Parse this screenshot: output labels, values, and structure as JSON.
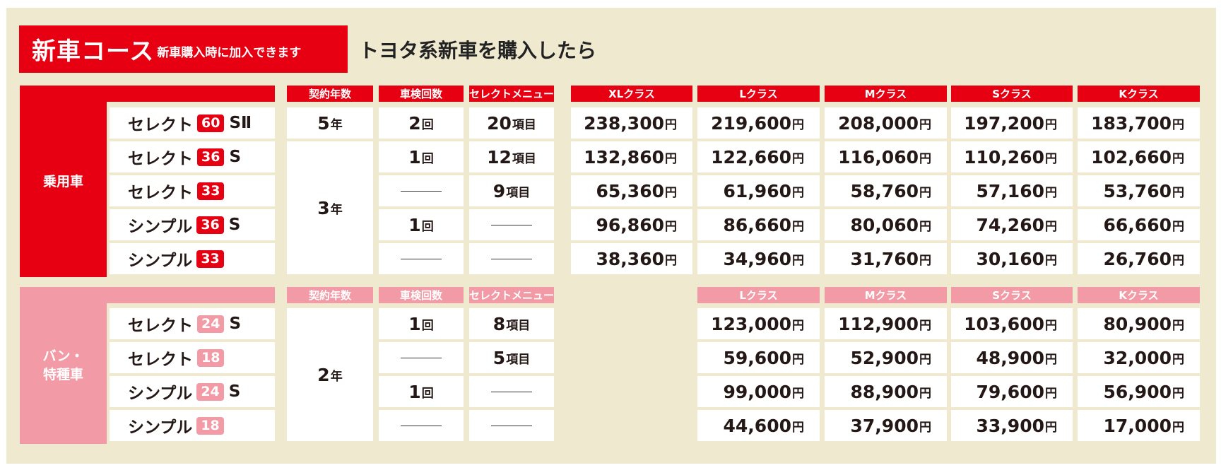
{
  "header": {
    "title": "新車コース",
    "title_note": "新車購入時に加入できます",
    "subtitle": "トヨタ系新車を購入したら"
  },
  "colors": {
    "accent_red": "#e60012",
    "accent_pink": "#f29aa5",
    "panel_bg": "#efe9cf"
  },
  "sections": [
    {
      "category": "乗用車",
      "column_headers": [
        "契約年数",
        "車検回数",
        "セレクトメニュー"
      ],
      "price_headers": [
        "XLクラス",
        "Lクラス",
        "Mクラス",
        "Sクラス",
        "Kクラス"
      ],
      "rows": [
        {
          "plan": "セレクト",
          "badge": "60",
          "suffix": "SⅡ",
          "inspections": "2",
          "inspections_unit": "回",
          "menu": "20",
          "menu_unit": "項目",
          "prices": [
            "238,300",
            "219,600",
            "208,000",
            "197,200",
            "183,700"
          ]
        },
        {
          "plan": "セレクト",
          "badge": "36",
          "suffix": "S",
          "inspections": "1",
          "inspections_unit": "回",
          "menu": "12",
          "menu_unit": "項目",
          "prices": [
            "132,860",
            "122,660",
            "116,060",
            "110,260",
            "102,660"
          ]
        },
        {
          "plan": "セレクト",
          "badge": "33",
          "suffix": "",
          "inspections": "",
          "inspections_unit": "",
          "menu": "9",
          "menu_unit": "項目",
          "prices": [
            "65,360",
            "61,960",
            "58,760",
            "57,160",
            "53,760"
          ]
        },
        {
          "plan": "シンプル",
          "badge": "36",
          "suffix": "S",
          "inspections": "1",
          "inspections_unit": "回",
          "menu": "",
          "menu_unit": "",
          "prices": [
            "96,860",
            "86,660",
            "80,060",
            "74,260",
            "66,660"
          ]
        },
        {
          "plan": "シンプル",
          "badge": "33",
          "suffix": "",
          "inspections": "",
          "inspections_unit": "",
          "menu": "",
          "menu_unit": "",
          "prices": [
            "38,360",
            "34,960",
            "31,760",
            "30,160",
            "26,760"
          ]
        }
      ],
      "years": [
        {
          "value": "5",
          "unit": "年"
        },
        {
          "value": "3",
          "unit": "年"
        }
      ]
    },
    {
      "category_line1": "バン・",
      "category_line2": "特種車",
      "column_headers": [
        "契約年数",
        "車検回数",
        "セレクトメニュー"
      ],
      "price_headers": [
        "Lクラス",
        "Mクラス",
        "Sクラス",
        "Kクラス"
      ],
      "rows": [
        {
          "plan": "セレクト",
          "badge": "24",
          "suffix": "S",
          "inspections": "1",
          "inspections_unit": "回",
          "menu": "8",
          "menu_unit": "項目",
          "prices": [
            "123,000",
            "112,900",
            "103,600",
            "80,900"
          ]
        },
        {
          "plan": "セレクト",
          "badge": "18",
          "suffix": "",
          "inspections": "",
          "inspections_unit": "",
          "menu": "5",
          "menu_unit": "項目",
          "prices": [
            "59,600",
            "52,900",
            "48,900",
            "32,000"
          ]
        },
        {
          "plan": "シンプル",
          "badge": "24",
          "suffix": "S",
          "inspections": "1",
          "inspections_unit": "回",
          "menu": "",
          "menu_unit": "",
          "prices": [
            "99,000",
            "88,900",
            "79,600",
            "56,900"
          ]
        },
        {
          "plan": "シンプル",
          "badge": "18",
          "suffix": "",
          "inspections": "",
          "inspections_unit": "",
          "menu": "",
          "menu_unit": "",
          "prices": [
            "44,600",
            "37,900",
            "33,900",
            "17,000"
          ]
        }
      ],
      "years": [
        {
          "value": "2",
          "unit": "年"
        }
      ]
    }
  ],
  "price_unit": "円"
}
